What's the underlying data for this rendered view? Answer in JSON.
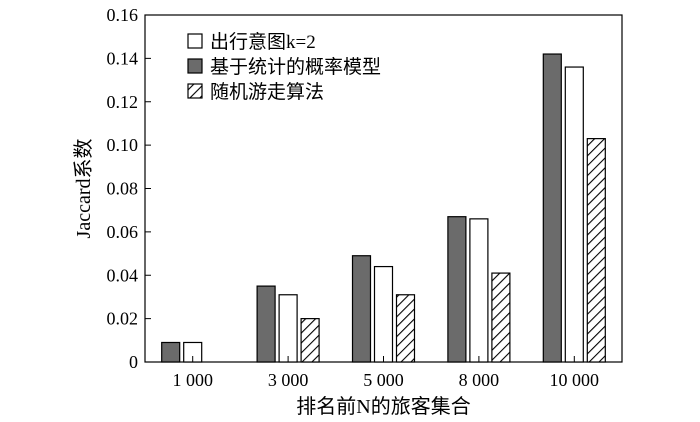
{
  "chart_data": {
    "type": "bar",
    "categories": [
      "1 000",
      "3 000",
      "5 000",
      "8 000",
      "10 000"
    ],
    "series": [
      {
        "name": "出行意图k=2",
        "values": [
          0.009,
          0.031,
          0.044,
          0.066,
          0.136
        ],
        "fill": "white"
      },
      {
        "name": "基于统计的概率模型",
        "values": [
          0.009,
          0.035,
          0.049,
          0.067,
          0.142
        ],
        "fill": "gray"
      },
      {
        "name": "随机游走算法",
        "values": [
          null,
          0.02,
          0.031,
          0.041,
          0.103
        ],
        "fill": "hatch"
      }
    ],
    "bar_order": [
      1,
      0,
      2
    ],
    "xlabel": "排名前N的旅客集合",
    "ylabel": "Jaccard系数",
    "ylim": [
      0,
      0.16
    ],
    "yticks": [
      0,
      0.02,
      0.04,
      0.06,
      0.08,
      0.1,
      0.12,
      0.14,
      0.16
    ],
    "ytick_labels": [
      "0",
      "0.02",
      "0.04",
      "0.06",
      "0.08",
      "0.10",
      "0.12",
      "0.14",
      "0.16"
    ],
    "grid": false,
    "legend_position": "top-left"
  },
  "colors": {
    "gray": "#6b6b6b",
    "axis": "#000000"
  }
}
